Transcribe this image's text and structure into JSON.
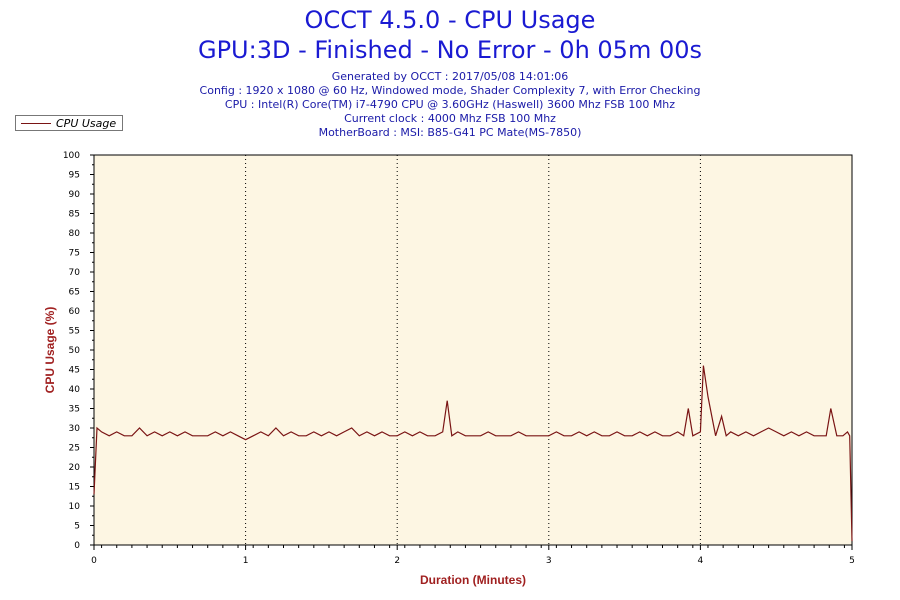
{
  "colors": {
    "title": "#1a1ad2",
    "info": "#1a1aa8",
    "line": "#7a1414",
    "plot_bg": "#fdf6e3",
    "axis_label": "#a02020"
  },
  "header": {
    "title": "OCCT 4.5.0 - CPU Usage",
    "subtitle": "GPU:3D - Finished - No Error - 0h 05m 00s",
    "info": [
      "Generated by OCCT : 2017/05/08 14:01:06",
      "Config : 1920 x 1080 @ 60 Hz, Windowed mode, Shader Complexity 7, with Error Checking",
      "CPU : Intel(R) Core(TM) i7-4790 CPU @ 3.60GHz (Haswell) 3600 Mhz FSB 100 Mhz",
      "Current clock : 4000 Mhz FSB 100 Mhz",
      "MotherBoard : MSI: B85-G41 PC Mate(MS-7850)"
    ]
  },
  "chart_data": {
    "type": "line",
    "title": "OCCT 4.5.0 - CPU Usage",
    "xlabel": "Duration (Minutes)",
    "ylabel": "CPU Usage (%)",
    "xlim": [
      0,
      5
    ],
    "ylim": [
      0,
      100
    ],
    "x_ticks": [
      "0",
      "1",
      "2",
      "3",
      "4",
      "5"
    ],
    "y_ticks": [
      "0",
      "5",
      "10",
      "15",
      "20",
      "25",
      "30",
      "35",
      "40",
      "45",
      "50",
      "55",
      "60",
      "65",
      "70",
      "75",
      "80",
      "85",
      "90",
      "95",
      "100"
    ],
    "grid": "vertical dotted lines at each minute",
    "legend": "top-left",
    "series": [
      {
        "name": "CPU Usage",
        "x": [
          0,
          0.02,
          0.05,
          0.1,
          0.15,
          0.2,
          0.25,
          0.3,
          0.35,
          0.4,
          0.45,
          0.5,
          0.55,
          0.6,
          0.65,
          0.7,
          0.75,
          0.8,
          0.85,
          0.9,
          0.95,
          1.0,
          1.05,
          1.1,
          1.15,
          1.2,
          1.25,
          1.3,
          1.35,
          1.4,
          1.45,
          1.5,
          1.55,
          1.6,
          1.65,
          1.7,
          1.75,
          1.8,
          1.85,
          1.9,
          1.95,
          2.0,
          2.05,
          2.1,
          2.15,
          2.2,
          2.25,
          2.3,
          2.33,
          2.36,
          2.4,
          2.45,
          2.5,
          2.55,
          2.6,
          2.65,
          2.7,
          2.75,
          2.8,
          2.85,
          2.9,
          2.95,
          3.0,
          3.05,
          3.1,
          3.15,
          3.2,
          3.25,
          3.3,
          3.35,
          3.4,
          3.45,
          3.5,
          3.55,
          3.6,
          3.65,
          3.7,
          3.75,
          3.8,
          3.85,
          3.89,
          3.92,
          3.95,
          4.0,
          4.02,
          4.05,
          4.1,
          4.14,
          4.17,
          4.2,
          4.25,
          4.3,
          4.35,
          4.4,
          4.45,
          4.5,
          4.55,
          4.6,
          4.65,
          4.7,
          4.75,
          4.8,
          4.83,
          4.86,
          4.9,
          4.94,
          4.97,
          4.985,
          5.0
        ],
        "values": [
          13,
          30,
          29,
          28,
          29,
          28,
          28,
          30,
          28,
          29,
          28,
          29,
          28,
          29,
          28,
          28,
          28,
          29,
          28,
          29,
          28,
          27,
          28,
          29,
          28,
          30,
          28,
          29,
          28,
          28,
          29,
          28,
          29,
          28,
          29,
          30,
          28,
          29,
          28,
          29,
          28,
          28,
          29,
          28,
          29,
          28,
          28,
          29,
          37,
          28,
          29,
          28,
          28,
          28,
          29,
          28,
          28,
          28,
          29,
          28,
          28,
          28,
          28,
          29,
          28,
          28,
          29,
          28,
          29,
          28,
          28,
          29,
          28,
          28,
          29,
          28,
          29,
          28,
          28,
          29,
          28,
          35,
          28,
          29,
          46,
          38,
          28,
          33,
          28,
          29,
          28,
          29,
          28,
          29,
          30,
          29,
          28,
          29,
          28,
          29,
          28,
          28,
          28,
          35,
          28,
          28,
          29,
          28,
          1
        ]
      }
    ]
  }
}
